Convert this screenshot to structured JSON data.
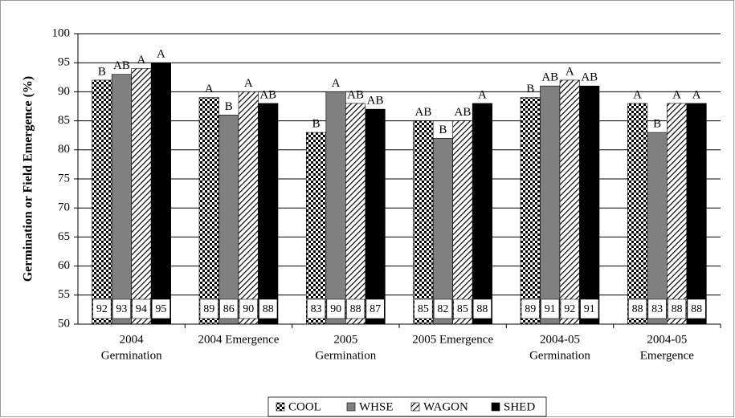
{
  "chart_data": {
    "type": "bar",
    "y_label": "Germination or Field Emergence (%)",
    "categories": [
      [
        "2004",
        "Germination"
      ],
      [
        "2004 Emergence"
      ],
      [
        "2005",
        "Germination"
      ],
      [
        "2005 Emergence"
      ],
      [
        "2004-05",
        "Germination"
      ],
      [
        "2004-05",
        "Emergence"
      ]
    ],
    "series": [
      {
        "name": "COOL",
        "color": "#000000",
        "pattern": "checker",
        "values": [
          92,
          89,
          83,
          85,
          89,
          88
        ],
        "letters": [
          "B",
          "A",
          "B",
          "AB",
          "B",
          "A"
        ]
      },
      {
        "name": "WHSE",
        "color": "#808080",
        "pattern": "solid",
        "values": [
          93,
          86,
          90,
          82,
          91,
          83
        ],
        "letters": [
          "AB",
          "B",
          "A",
          "B",
          "AB",
          "B"
        ]
      },
      {
        "name": "WAGON",
        "color": "#000000",
        "pattern": "hatch",
        "values": [
          94,
          90,
          88,
          85,
          92,
          88
        ],
        "letters": [
          "A",
          "A",
          "AB",
          "AB",
          "A",
          "A"
        ]
      },
      {
        "name": "SHED",
        "color": "#000000",
        "pattern": "solid",
        "values": [
          95,
          88,
          87,
          88,
          91,
          88
        ],
        "letters": [
          "A",
          "AB",
          "AB",
          "A",
          "AB",
          "A"
        ]
      }
    ],
    "ylim": [
      50,
      100
    ],
    "yticks": [
      50,
      55,
      60,
      65,
      70,
      75,
      80,
      85,
      90,
      95,
      100
    ],
    "grid": true,
    "legend": "bottom"
  }
}
